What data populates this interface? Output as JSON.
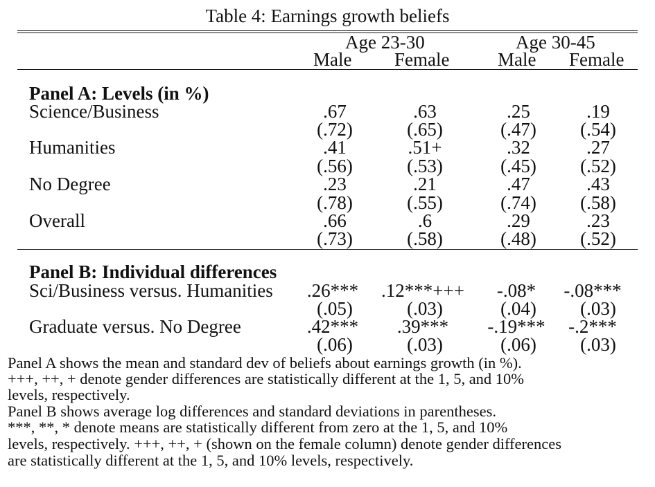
{
  "title": "Table 4: Earnings growth beliefs",
  "groups": [
    "Age 23-30",
    "Age 30-45"
  ],
  "columns": [
    "Male",
    "Female",
    "Male",
    "Female"
  ],
  "panel_a": {
    "heading": "Panel A: Levels (in %)",
    "rows": [
      {
        "label": "Science/Business",
        "values": [
          ".67",
          ".63",
          ".25",
          ".19"
        ],
        "sds": [
          "(.72)",
          "(.65)",
          "(.47)",
          "(.54)"
        ]
      },
      {
        "label": "Humanities",
        "values": [
          ".41",
          ".51+",
          ".32",
          ".27"
        ],
        "sds": [
          "(.56)",
          "(.53)",
          "(.45)",
          "(.52)"
        ]
      },
      {
        "label": "No Degree",
        "values": [
          ".23",
          ".21",
          ".47",
          ".43"
        ],
        "sds": [
          "(.78)",
          "(.55)",
          "(.74)",
          "(.58)"
        ]
      },
      {
        "label": "Overall",
        "values": [
          ".66",
          ".6",
          ".29",
          ".23"
        ],
        "sds": [
          "(.73)",
          "(.58)",
          "(.48)",
          "(.52)"
        ]
      }
    ]
  },
  "panel_b": {
    "heading": "Panel B: Individual differences",
    "rows": [
      {
        "label": "Sci/Business versus. Humanities",
        "values": [
          ".26***",
          ".12***+++",
          "-.08*",
          "-.08***"
        ],
        "sds": [
          "(.05)",
          "(.03)",
          "(.04)",
          "(.03)"
        ]
      },
      {
        "label": "Graduate versus. No Degree",
        "values": [
          ".42***",
          ".39***",
          "-.19***",
          "-.2***"
        ],
        "sds": [
          "(.06)",
          "(.03)",
          "(.06)",
          "(.03)"
        ]
      }
    ]
  },
  "notes": [
    "Panel A shows the mean and standard dev of beliefs about earnings growth (in %).",
    "+++, ++, + denote gender differences are statistically different at the 1, 5, and 10%",
    "levels, respectively.",
    "Panel B shows average log differences and standard deviations in parentheses.",
    "***, **, * denote means are statistically different from zero at the 1, 5, and 10%",
    "levels, respectively. +++, ++, + (shown on the female column) denote gender differences",
    "are statistically different at the 1, 5, and 10% levels, respectively."
  ]
}
